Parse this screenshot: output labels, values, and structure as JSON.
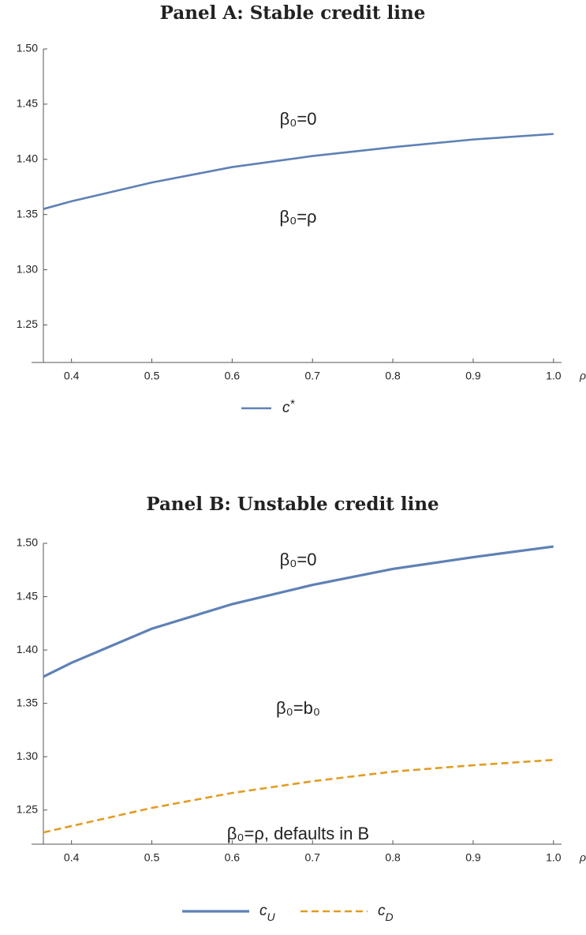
{
  "chart_data": [
    {
      "type": "line",
      "title": "Panel A: Stable credit line",
      "xlabel": "ρ",
      "annotations": [
        "β₀=0",
        "β₀=ρ"
      ],
      "x": [
        0.365,
        0.4,
        0.5,
        0.6,
        0.7,
        0.8,
        0.9,
        1.0
      ],
      "series": [
        {
          "name": "c*",
          "color": "#5e81b5",
          "dashed": false,
          "values": [
            1.355,
            1.362,
            1.379,
            1.393,
            1.403,
            1.411,
            1.418,
            1.423
          ]
        }
      ],
      "xlim": [
        0.365,
        1.01
      ],
      "ylim": [
        1.216,
        1.5
      ],
      "xticks": [
        0.4,
        0.5,
        0.6,
        0.7,
        0.8,
        0.9,
        {
          "value": 1.0,
          "label": "1.0"
        }
      ],
      "yticks": [
        1.25,
        {
          "value": 1.3,
          "label": "1.30"
        },
        1.35,
        {
          "value": 1.4,
          "label": "1.40"
        },
        1.45,
        {
          "value": 1.5,
          "label": "1.50"
        }
      ]
    },
    {
      "type": "line",
      "title": "Panel B: Unstable credit line",
      "xlabel": "ρ",
      "annotations": [
        "β₀=0",
        "β₀=b₀",
        "β₀=ρ, defaults in B"
      ],
      "x": [
        0.365,
        0.4,
        0.5,
        0.6,
        0.7,
        0.8,
        0.9,
        1.0
      ],
      "series": [
        {
          "name": "cU",
          "color": "#5e81b5",
          "dashed": false,
          "values": [
            1.375,
            1.388,
            1.42,
            1.443,
            1.461,
            1.476,
            1.487,
            1.497
          ]
        },
        {
          "name": "cD",
          "color": "#e19c24",
          "dashed": true,
          "values": [
            1.229,
            1.235,
            1.252,
            1.266,
            1.277,
            1.286,
            1.292,
            1.297
          ]
        }
      ],
      "xlim": [
        0.365,
        1.01
      ],
      "ylim": [
        1.218,
        1.5
      ],
      "xticks": [
        0.4,
        0.5,
        0.6,
        0.7,
        0.8,
        0.9,
        {
          "value": 1.0,
          "label": "1.0"
        }
      ],
      "yticks": [
        1.25,
        {
          "value": 1.3,
          "label": "1.30"
        },
        1.35,
        {
          "value": 1.4,
          "label": "1.40"
        },
        1.45,
        {
          "value": 1.5,
          "label": "1.50"
        }
      ]
    }
  ]
}
